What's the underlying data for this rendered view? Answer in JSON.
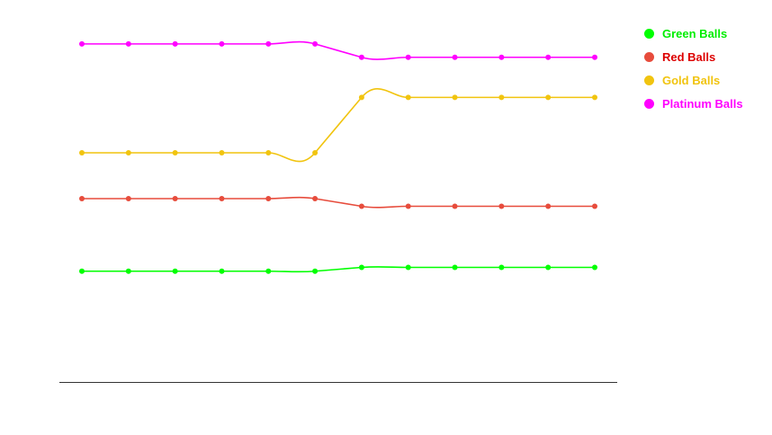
{
  "chart_data": {
    "type": "line",
    "title": "",
    "xlabel": "",
    "ylabel": "",
    "ylim": [
      0,
      100
    ],
    "grid": false,
    "legend_position": "top-right",
    "x": [
      1,
      2,
      3,
      4,
      5,
      6,
      7,
      8,
      9,
      10,
      11,
      12
    ],
    "series": [
      {
        "name": "Green Balls",
        "color": "#00ff00",
        "label_color": "#00ee00",
        "values": [
          29,
          29,
          29,
          29,
          29,
          29,
          30,
          30,
          30,
          30,
          30,
          30
        ]
      },
      {
        "name": "Red Balls",
        "color": "#e74c3c",
        "label_color": "#dd0000",
        "values": [
          48,
          48,
          48,
          48,
          48,
          48,
          46,
          46,
          46,
          46,
          46,
          46
        ]
      },
      {
        "name": "Gold Balls",
        "color": "#f1c40f",
        "label_color": "#f1c40f",
        "values": [
          60,
          60,
          60,
          60,
          60,
          60,
          74.5,
          74.5,
          74.5,
          74.5,
          74.5,
          74.5
        ]
      },
      {
        "name": "Platinum Balls",
        "color": "#ff00ff",
        "label_color": "#ff00ff",
        "values": [
          88.5,
          88.5,
          88.5,
          88.5,
          88.5,
          88.5,
          85,
          85,
          85,
          85,
          85,
          85
        ]
      }
    ]
  }
}
